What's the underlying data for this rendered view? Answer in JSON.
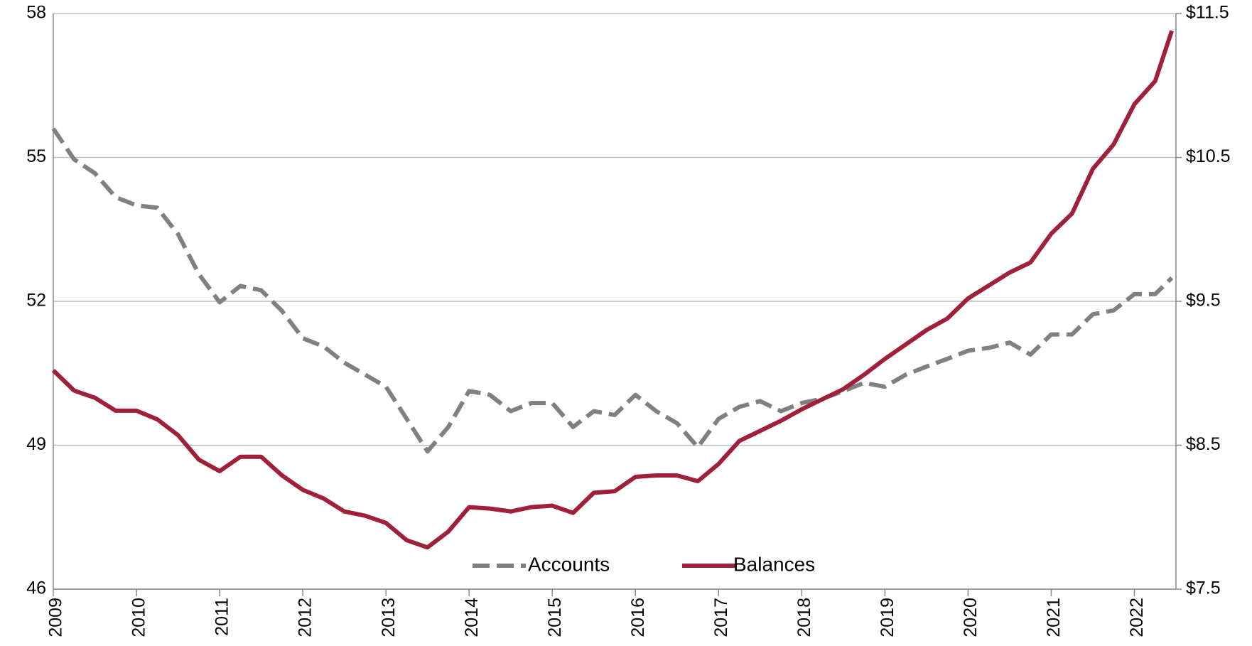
{
  "chart_data": {
    "type": "line",
    "x": [
      2009.0,
      2009.25,
      2009.5,
      2009.75,
      2010.0,
      2010.25,
      2010.5,
      2010.75,
      2011.0,
      2011.25,
      2011.5,
      2011.75,
      2012.0,
      2012.25,
      2012.5,
      2012.75,
      2013.0,
      2013.25,
      2013.5,
      2013.75,
      2014.0,
      2014.25,
      2014.5,
      2014.75,
      2015.0,
      2015.25,
      2015.5,
      2015.75,
      2016.0,
      2016.25,
      2016.5,
      2016.75,
      2017.0,
      2017.25,
      2017.5,
      2017.75,
      2018.0,
      2018.25,
      2018.5,
      2018.75,
      2019.0,
      2019.25,
      2019.5,
      2019.75,
      2020.0,
      2020.25,
      2020.5,
      2020.75,
      2021.0,
      2021.25,
      2021.5,
      2021.75,
      2022.0,
      2022.25,
      2022.45
    ],
    "series": [
      {
        "name": "Accounts",
        "color": "#808080",
        "dashed": true,
        "values": [
          55.6,
          54.96,
          54.67,
          54.17,
          54.0,
          53.95,
          53.4,
          52.57,
          51.98,
          52.32,
          52.23,
          51.8,
          51.23,
          51.06,
          50.72,
          50.47,
          50.22,
          49.55,
          48.87,
          49.38,
          50.13,
          50.05,
          49.71,
          49.88,
          49.88,
          49.38,
          49.71,
          49.63,
          50.05,
          49.71,
          49.46,
          48.96,
          49.55,
          49.8,
          49.92,
          49.71,
          49.88,
          49.97,
          50.13,
          50.3,
          50.22,
          50.47,
          50.64,
          50.8,
          50.97,
          51.03,
          51.14,
          50.89,
          51.31,
          51.31,
          51.73,
          51.81,
          52.15,
          52.15,
          52.49
        ]
      },
      {
        "name": "Balances",
        "color": "#a0203a",
        "axis": "y2",
        "values": [
          9.02,
          8.88,
          8.83,
          8.74,
          8.74,
          8.68,
          8.57,
          8.4,
          8.32,
          8.42,
          8.42,
          8.29,
          8.19,
          8.13,
          8.04,
          8.01,
          7.96,
          7.84,
          7.79,
          7.9,
          8.07,
          8.06,
          8.04,
          8.07,
          8.08,
          8.03,
          8.17,
          8.18,
          8.28,
          8.29,
          8.29,
          8.25,
          8.37,
          8.53,
          8.6,
          8.67,
          8.75,
          8.82,
          8.89,
          8.99,
          9.1,
          9.2,
          9.3,
          9.38,
          9.52,
          9.61,
          9.7,
          9.77,
          9.97,
          10.11,
          10.42,
          10.59,
          10.87,
          11.03,
          11.38
        ]
      }
    ],
    "xlim": [
      2009,
      2022.5
    ],
    "xticks": [
      2009,
      2010,
      2011,
      2012,
      2013,
      2014,
      2015,
      2016,
      2017,
      2018,
      2019,
      2020,
      2021,
      2022
    ],
    "ylim": [
      46,
      58
    ],
    "yticks": [
      46,
      49,
      52,
      55,
      58
    ],
    "y2lim": [
      7.5,
      11.5
    ],
    "y2ticks": [
      {
        "value": 7.5,
        "label": "$7.5"
      },
      {
        "value": 8.5,
        "label": "$8.5"
      },
      {
        "value": 9.5,
        "label": "$9.5"
      },
      {
        "value": 10.5,
        "label": "$10.5"
      },
      {
        "value": 11.5,
        "label": "$11.5"
      }
    ],
    "grid": true,
    "legend": "bottom"
  }
}
